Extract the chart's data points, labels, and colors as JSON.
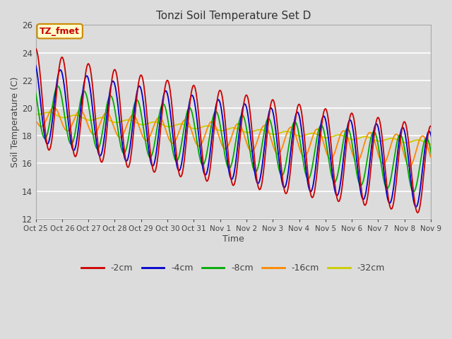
{
  "title": "Tonzi Soil Temperature Set D",
  "xlabel": "Time",
  "ylabel": "Soil Temperature (C)",
  "ylim": [
    12,
    26
  ],
  "background_color": "#dcdcdc",
  "colors": {
    "-2cm": "#cc0000",
    "-4cm": "#0000cc",
    "-8cm": "#00aa00",
    "-16cm": "#ff8800",
    "-32cm": "#cccc00"
  },
  "annotation_text": "TZ_fmet",
  "annotation_bg": "#ffffcc",
  "annotation_border": "#cc8800",
  "x_tick_labels": [
    "Oct 25",
    "Oct 26",
    "Oct 27",
    "Oct 28",
    "Oct 29",
    "Oct 30",
    "Oct 31",
    "Nov 1",
    "Nov 2",
    "Nov 3",
    "Nov 4",
    "Nov 5",
    "Nov 6",
    "Nov 7",
    "Nov 8",
    "Nov 9"
  ],
  "x_tick_positions": [
    0,
    24,
    48,
    72,
    96,
    120,
    144,
    168,
    192,
    216,
    240,
    264,
    288,
    312,
    336,
    360
  ],
  "yticks": [
    12,
    14,
    16,
    18,
    20,
    22,
    24,
    26
  ]
}
